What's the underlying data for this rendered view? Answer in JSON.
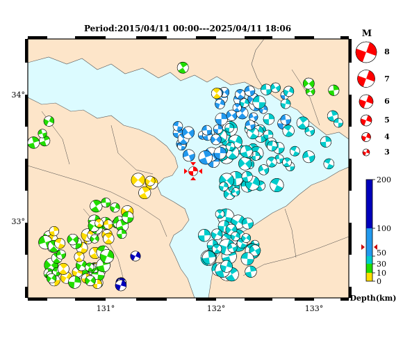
{
  "title": "Period:2015/04/11 00:00---2025/04/11 18:06",
  "map": {
    "lon_ticks": [
      "131°",
      "132°",
      "133°"
    ],
    "lat_ticks": [
      "34°",
      "33°"
    ],
    "colors": {
      "sea": "#dcfbff",
      "land": "#fde5c9",
      "border": "#000000"
    },
    "highlight_event": {
      "lon": 131.86,
      "lat": 33.39,
      "color": "#ff0000"
    }
  },
  "magnitude_legend": {
    "title": "M",
    "items": [
      "8",
      "7",
      "6",
      "5",
      "4",
      "3"
    ],
    "color": "#ff0000"
  },
  "depth_scale": {
    "labels": [
      "200",
      "100",
      "50",
      "30",
      "10",
      "0"
    ],
    "unit": "Depth(km)",
    "bands": [
      {
        "range": "0-10",
        "color": "#ffdd00"
      },
      {
        "range": "10-30",
        "color": "#22dd00"
      },
      {
        "range": "30-50",
        "color": "#00cccc"
      },
      {
        "range": "50-100",
        "color": "#2299ee"
      },
      {
        "range": "100-200",
        "color": "#0000bb"
      }
    ]
  }
}
